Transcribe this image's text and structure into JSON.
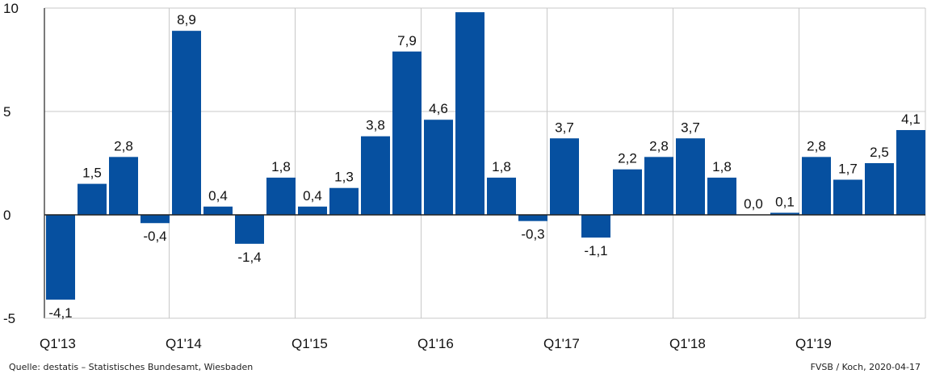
{
  "colors": {
    "bar": "#0650a0",
    "grid": "#c8c8c8",
    "axis": "#222222",
    "text": "#111111",
    "background": "#ffffff"
  },
  "footer": {
    "source": "Quelle:  destatis – Statistisches Bundesamt, Wiesbaden",
    "credit": "FVSB / Koch, 2020-04-17"
  },
  "chart_data": {
    "type": "bar",
    "title": "",
    "xlabel": "",
    "ylabel": "",
    "ylim": [
      -5,
      10
    ],
    "yticks": [
      10,
      5,
      0,
      -5
    ],
    "grid": true,
    "categories": [
      "Q1'13",
      "Q2'13",
      "Q3'13",
      "Q4'13",
      "Q1'14",
      "Q2'14",
      "Q3'14",
      "Q4'14",
      "Q1'15",
      "Q2'15",
      "Q3'15",
      "Q4'15",
      "Q1'16",
      "Q2'16",
      "Q3'16",
      "Q4'16",
      "Q1'17",
      "Q2'17",
      "Q3'17",
      "Q4'17",
      "Q1'18",
      "Q2'18",
      "Q3'18",
      "Q4'18",
      "Q1'19",
      "Q2'19",
      "Q3'19",
      "Q4'19"
    ],
    "xtick_labels": [
      "Q1'13",
      "Q1'14",
      "Q1'15",
      "Q1'16",
      "Q1'17",
      "Q1'18",
      "Q1'19"
    ],
    "values": [
      -4.1,
      1.5,
      2.8,
      -0.4,
      8.9,
      0.4,
      -1.4,
      1.8,
      0.4,
      1.3,
      3.8,
      7.9,
      4.6,
      9.8,
      1.8,
      -0.3,
      3.7,
      -1.1,
      2.2,
      2.8,
      3.7,
      1.8,
      0.0,
      0.1,
      2.8,
      1.7,
      2.5,
      4.1
    ],
    "data_labels": [
      "-4,1",
      "1,5",
      "2,8",
      "-0,4",
      "8,9",
      "0,4",
      "-1,4",
      "1,8",
      "0,4",
      "1,3",
      "3,8",
      "7,9",
      "4,6",
      "",
      "1,8",
      "-0,3",
      "3,7",
      "-1,1",
      "2,2",
      "2,8",
      "3,7",
      "1,8",
      "0,0",
      "0,1",
      "2,8",
      "1,7",
      "2,5",
      "4,1"
    ]
  }
}
